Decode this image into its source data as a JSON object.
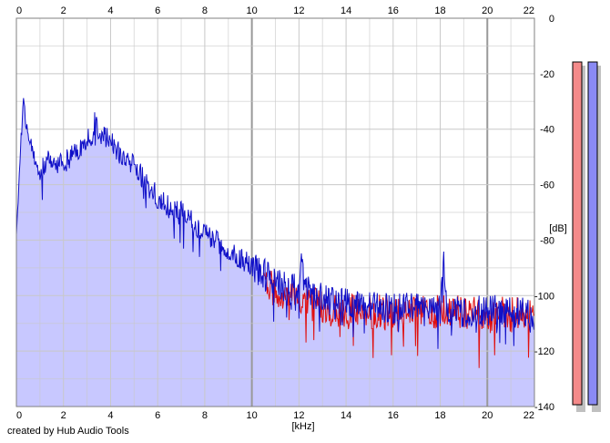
{
  "chart_data": {
    "type": "area",
    "title": "",
    "xlabel": "[kHz]",
    "ylabel": "[dB]",
    "xlim": [
      0,
      22
    ],
    "ylim": [
      -140,
      0
    ],
    "x_ticks": [
      "0",
      "2",
      "4",
      "6",
      "8",
      "10",
      "12",
      "14",
      "16",
      "18",
      "20",
      "22"
    ],
    "y_ticks": [
      "0",
      "-20",
      "-40",
      "-60",
      "-80",
      "-100",
      "-120",
      "-140"
    ],
    "grid": true,
    "colors": {
      "fill": "#c8c8ff",
      "left_line": "#e01010",
      "right_line": "#1010c8",
      "grid_minor": "#c8c8c8",
      "grid_major": "#999999",
      "meter_left": "#f48a8a",
      "meter_right": "#8a8af4"
    },
    "series": [
      {
        "x": [
          0,
          0.2,
          0.3,
          0.4,
          0.6,
          0.8,
          1.0,
          1.2,
          1.5,
          1.8,
          2.0,
          2.2,
          2.5,
          2.8,
          3.0,
          3.2,
          3.35,
          3.5,
          3.8,
          4.0,
          4.2,
          4.5,
          4.8,
          5.0,
          5.2,
          5.5,
          5.8,
          6.0,
          6.3,
          6.6,
          7.0,
          7.4,
          7.8,
          8.0,
          8.4,
          8.8,
          9.2,
          9.6,
          10.0,
          10.5,
          11.0,
          11.5,
          12.0,
          12.15,
          12.3,
          12.6,
          13.0,
          13.5,
          14.0,
          14.5,
          15.0,
          15.5,
          16.0,
          16.5,
          17.0,
          17.5,
          18.0,
          18.15,
          18.3,
          18.6,
          19.0,
          19.5,
          20.0,
          20.5,
          21.0,
          21.5,
          22.0
        ],
        "values": [
          -78,
          -42,
          -28,
          -38,
          -45,
          -52,
          -57,
          -52,
          -50,
          -53,
          -52,
          -51,
          -48,
          -46,
          -44,
          -42,
          -37,
          -41,
          -43,
          -43,
          -47,
          -50,
          -53,
          -52,
          -55,
          -60,
          -62,
          -65,
          -67,
          -69,
          -70,
          -73,
          -76,
          -77,
          -80,
          -82,
          -85,
          -87,
          -89,
          -92,
          -95,
          -97,
          -98,
          -82,
          -97,
          -99,
          -101,
          -103,
          -103,
          -104,
          -104,
          -104,
          -105,
          -104,
          -104,
          -105,
          -105,
          -88,
          -104,
          -105,
          -106,
          -105,
          -106,
          -105,
          -106,
          -106,
          -107
        ]
      },
      {
        "x": [
          10.5,
          11.0,
          11.5,
          12.0,
          12.5,
          13.0,
          13.5,
          14.0,
          14.5,
          15.0,
          15.5,
          16.0,
          16.5,
          17.0,
          17.5,
          18.0,
          18.5,
          19.0,
          19.5,
          20.0,
          20.5,
          21.0,
          21.5,
          22.0
        ],
        "values": [
          -95,
          -98,
          -100,
          -102,
          -103,
          -104,
          -106,
          -106,
          -105,
          -106,
          -106,
          -107,
          -106,
          -105,
          -106,
          -106,
          -105,
          -107,
          -106,
          -108,
          -106,
          -107,
          -106,
          -108
        ]
      }
    ]
  },
  "credit": "created by Hub Audio Tools"
}
